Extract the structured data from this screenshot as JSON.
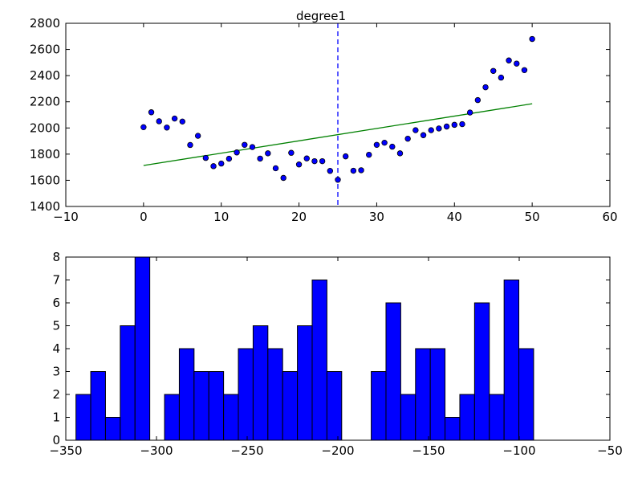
{
  "chart_data": [
    {
      "type": "scatter",
      "title": "degree1",
      "xlabel": "",
      "ylabel": "",
      "xlim": [
        -10,
        60
      ],
      "ylim": [
        1400,
        2800
      ],
      "xticks": [
        "−10",
        "0",
        "10",
        "20",
        "30",
        "40",
        "50",
        "60"
      ],
      "yticks": [
        "1400",
        "1600",
        "1800",
        "2000",
        "2200",
        "2400",
        "2600",
        "2800"
      ],
      "grid": false,
      "legend": "none",
      "vline": {
        "x": 25,
        "style": "dashed",
        "color": "#0000ff"
      },
      "fit_line": {
        "x": [
          0,
          50
        ],
        "y": [
          1713,
          2185
        ],
        "color": "#008000"
      },
      "point_color": "#0000ff",
      "points": {
        "x": [
          0,
          1,
          2,
          3,
          4,
          5,
          6,
          7,
          8,
          9,
          10,
          11,
          12,
          13,
          14,
          15,
          16,
          17,
          18,
          19,
          20,
          21,
          22,
          23,
          24,
          25,
          26,
          27,
          28,
          29,
          30,
          31,
          32,
          33,
          34,
          35,
          36,
          37,
          38,
          39,
          40,
          41,
          42,
          43,
          44,
          45,
          46,
          47,
          48,
          49,
          50
        ],
        "y": [
          2006,
          2120,
          2051,
          2003,
          2072,
          2049,
          1870,
          1940,
          1771,
          1708,
          1728,
          1765,
          1813,
          1871,
          1854,
          1766,
          1806,
          1692,
          1618,
          1810,
          1721,
          1767,
          1746,
          1746,
          1672,
          1604,
          1783,
          1673,
          1677,
          1795,
          1871,
          1887,
          1857,
          1806,
          1918,
          1983,
          1945,
          1983,
          1996,
          2011,
          2024,
          2029,
          2118,
          2213,
          2311,
          2436,
          2385,
          2516,
          2492,
          2442,
          2680
        ]
      }
    },
    {
      "type": "bar",
      "title": "",
      "xlabel": "",
      "ylabel": "",
      "xlim": [
        -350,
        -50
      ],
      "ylim": [
        0,
        8
      ],
      "xticks": [
        "−350",
        "−300",
        "−250",
        "−200",
        "−150",
        "−100",
        "−50"
      ],
      "yticks": [
        "0",
        "1",
        "2",
        "3",
        "4",
        "5",
        "6",
        "7",
        "8"
      ],
      "grid": false,
      "legend": "none",
      "bar_color": "#0000ff",
      "bin_width": 8.14,
      "bin_edges_start": -344.4,
      "values": [
        2,
        3,
        1,
        5,
        8,
        0,
        2,
        4,
        3,
        3,
        2,
        4,
        5,
        4,
        3,
        5,
        7,
        3,
        0,
        0,
        3,
        6,
        2,
        4,
        4,
        1,
        2,
        6,
        2,
        7,
        4
      ]
    }
  ]
}
